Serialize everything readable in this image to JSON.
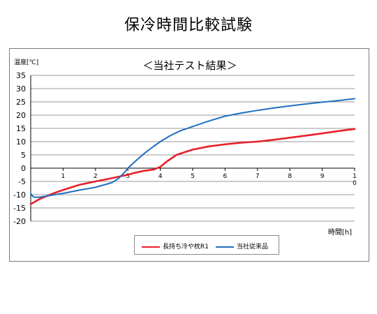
{
  "page": {
    "title": "保冷時間比較試験"
  },
  "colors": {
    "series1": "#e8202a",
    "series2": "#1f6fc0",
    "grid": "#9a9a9a",
    "axis": "#000000"
  },
  "chart_data": {
    "type": "line",
    "title": "＜当社テスト結果＞",
    "ylabel": "温度[℃]",
    "xlabel": "時間[h]",
    "xlim": [
      0,
      10
    ],
    "ylim": [
      -20,
      35
    ],
    "xticks": [
      "1",
      "2",
      "3",
      "4",
      "5",
      "6",
      "7",
      "8",
      "9",
      "10"
    ],
    "yticks": [
      "35",
      "30",
      "25",
      "20",
      "15",
      "10",
      "5",
      "0",
      "-5",
      "-10",
      "-15",
      "-20"
    ],
    "grid": "horizontal",
    "legend_position": "bottom-center",
    "series": [
      {
        "name": "長持ち冷や枕R1",
        "x": [
          0,
          0.05,
          0.15,
          0.3,
          0.5,
          0.7,
          1.0,
          1.5,
          2.0,
          2.5,
          2.8,
          3.0,
          3.2,
          3.5,
          3.8,
          4.0,
          4.2,
          4.5,
          4.8,
          5.0,
          5.5,
          6.0,
          6.5,
          7.0,
          7.5,
          8.0,
          8.5,
          9.0,
          9.5,
          10.0
        ],
        "y": [
          -13.5,
          -13.2,
          -12.5,
          -11.5,
          -10.5,
          -9.5,
          -8.2,
          -6.3,
          -5.0,
          -3.8,
          -3.0,
          -2.5,
          -1.8,
          -1.0,
          -0.5,
          0.5,
          2.5,
          5.0,
          6.2,
          7.0,
          8.2,
          9.0,
          9.6,
          10.0,
          10.7,
          11.5,
          12.3,
          13.1,
          14.0,
          14.8
        ]
      },
      {
        "name": "当社従来品",
        "x": [
          0,
          0.05,
          0.1,
          0.2,
          0.3,
          0.5,
          1.0,
          1.5,
          2.0,
          2.5,
          2.7,
          2.8,
          2.9,
          3.0,
          3.2,
          3.5,
          3.8,
          4.0,
          4.3,
          4.6,
          5.0,
          5.5,
          6.0,
          6.5,
          7.0,
          7.5,
          8.0,
          8.5,
          9.0,
          9.5,
          10.0
        ],
        "y": [
          -9.5,
          -10.5,
          -10.9,
          -11.0,
          -10.9,
          -10.5,
          -9.5,
          -8.3,
          -7.2,
          -5.5,
          -4.0,
          -2.8,
          -1.5,
          0.0,
          2.3,
          5.5,
          8.3,
          10.0,
          12.2,
          14.0,
          15.7,
          17.8,
          19.6,
          20.8,
          21.8,
          22.7,
          23.5,
          24.2,
          24.9,
          25.5,
          26.2
        ]
      }
    ]
  }
}
